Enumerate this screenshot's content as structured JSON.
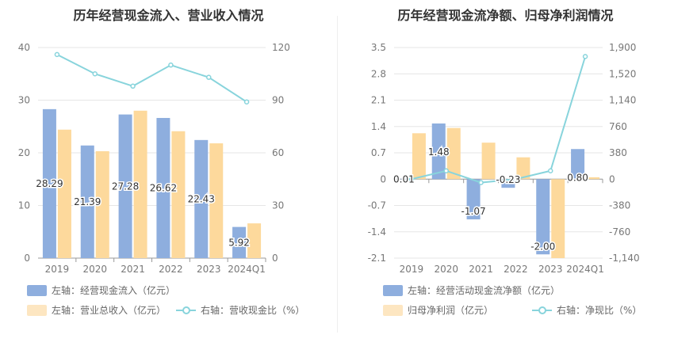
{
  "chart_data": [
    {
      "type": "bar",
      "title": "历年经营现金流入、营业收入情况",
      "categories": [
        "2019",
        "2020",
        "2021",
        "2022",
        "2023",
        "2024Q1"
      ],
      "series": [
        {
          "name": "左轴：经营现金流入（亿元）",
          "axis": "left",
          "type": "bar",
          "color": "#8eaede",
          "values": [
            28.29,
            21.39,
            27.28,
            26.62,
            22.43,
            5.92
          ],
          "labels": [
            "28.29",
            "21.39",
            "27.28",
            "26.62",
            "22.43",
            "5.92"
          ]
        },
        {
          "name": "左轴：营业总收入（亿元）",
          "axis": "left",
          "type": "bar",
          "color": "#fdd99c",
          "values": [
            24.4,
            20.3,
            28.0,
            24.1,
            21.8,
            6.6
          ]
        },
        {
          "name": "右轴：营收现金比（%）",
          "axis": "right",
          "type": "line",
          "color": "#88d4dc",
          "values": [
            116,
            105,
            98,
            110,
            103,
            89
          ]
        }
      ],
      "left_axis": {
        "min": 0,
        "max": 40,
        "ticks": [
          "0",
          "10",
          "20",
          "30",
          "40"
        ],
        "tick_values": [
          0,
          10,
          20,
          30,
          40
        ]
      },
      "right_axis": {
        "min": 0,
        "max": 120,
        "ticks": [
          "0",
          "30",
          "60",
          "90",
          "120"
        ],
        "tick_values": [
          0,
          30,
          60,
          90,
          120
        ]
      },
      "grid": true,
      "legend_position": "bottom-left"
    },
    {
      "type": "bar",
      "title": "历年经营现金流净额、归母净利润情况",
      "categories": [
        "2019",
        "2020",
        "2021",
        "2022",
        "2023",
        "2024Q1"
      ],
      "series": [
        {
          "name": "左轴：经营活动现金流净额（亿元）",
          "axis": "left",
          "type": "bar",
          "color": "#8eaede",
          "values": [
            0.01,
            1.48,
            -1.07,
            -0.23,
            -2.0,
            0.8
          ],
          "labels": [
            "0.01",
            "1.48",
            "-1.07",
            "-0.23",
            "-2.00",
            "0.80"
          ]
        },
        {
          "name": "归母净利润（亿元）",
          "axis": "left",
          "type": "bar",
          "color": "#fdd99c",
          "values": [
            1.22,
            1.36,
            0.97,
            0.58,
            -2.1,
            0.05
          ]
        },
        {
          "name": "右轴：净现比（%）",
          "axis": "right",
          "type": "line",
          "color": "#88d4dc",
          "values": [
            0,
            120,
            -50,
            0,
            120,
            1770
          ]
        }
      ],
      "left_axis": {
        "min": -2.1,
        "max": 3.5,
        "ticks": [
          "-2.1",
          "-1.4",
          "-0.7",
          "0",
          "0.7",
          "1.4",
          "2.1",
          "2.8",
          "3.5"
        ],
        "tick_values": [
          -2.1,
          -1.4,
          -0.7,
          0,
          0.7,
          1.4,
          2.1,
          2.8,
          3.5
        ]
      },
      "right_axis": {
        "min": -1140,
        "max": 1900,
        "ticks": [
          "-1,140",
          "-760",
          "-380",
          "0",
          "380",
          "760",
          "1,140",
          "1,520",
          "1,900"
        ],
        "tick_values": [
          -1140,
          -760,
          -380,
          0,
          380,
          760,
          1140,
          1520,
          1900
        ]
      },
      "grid": true,
      "legend_position": "bottom-left"
    }
  ]
}
